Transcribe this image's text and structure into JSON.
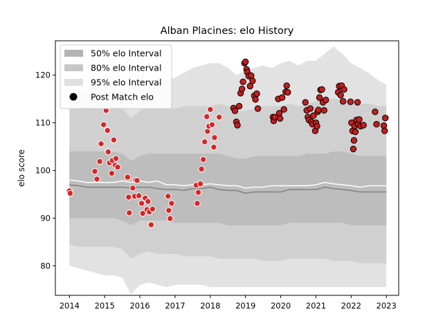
{
  "chart_data": {
    "type": "scatter",
    "title": "Alban Placines: elo History",
    "xlabel": "",
    "ylabel": "elo score",
    "xlim": [
      2013.6,
      2023.35
    ],
    "ylim": [
      73.8,
      127.2
    ],
    "x_ticks": [
      {
        "value": 2014,
        "label": "2014"
      },
      {
        "value": 2015,
        "label": "2015"
      },
      {
        "value": 2016,
        "label": "2016"
      },
      {
        "value": 2017,
        "label": "2017"
      },
      {
        "value": 2018,
        "label": "2018"
      },
      {
        "value": 2019,
        "label": "2019"
      },
      {
        "value": 2020,
        "label": "2020"
      },
      {
        "value": 2021,
        "label": "2021"
      },
      {
        "value": 2022,
        "label": "2022"
      },
      {
        "value": 2023,
        "label": "2023"
      }
    ],
    "y_ticks": [
      {
        "value": 80,
        "label": "80"
      },
      {
        "value": 90,
        "label": "90"
      },
      {
        "value": 100,
        "label": "100"
      },
      {
        "value": 110,
        "label": "110"
      },
      {
        "value": 120,
        "label": "120"
      }
    ],
    "grid": false,
    "legend_position": "top-left",
    "legend": [
      {
        "label": "50% elo Interval",
        "kind": "band",
        "color": "#b3b3b3"
      },
      {
        "label": "80% elo Interval",
        "kind": "band",
        "color": "#c6c6c6"
      },
      {
        "label": "95% elo Interval",
        "kind": "band",
        "color": "#e0e0e0"
      },
      {
        "label": "Post Match elo",
        "kind": "marker",
        "color": "#000000"
      }
    ],
    "colors": {
      "band_95": "#e2e2e2",
      "band_80": "#d0d0d0",
      "band_50": "#bdbdbd",
      "median_line": "#808080",
      "mean_line": "#ffffff",
      "points_early_fill": "#d62728",
      "points_early_edge": "#ffffff",
      "points_late_fill": "#c41e1e",
      "points_late_edge": "#000000"
    },
    "bands": {
      "x": [
        2014.0,
        2014.25,
        2014.5,
        2014.75,
        2015.0,
        2015.25,
        2015.5,
        2015.75,
        2016.0,
        2016.25,
        2016.5,
        2016.75,
        2017.0,
        2017.25,
        2017.5,
        2017.75,
        2018.0,
        2018.25,
        2018.5,
        2018.75,
        2019.0,
        2019.25,
        2019.5,
        2019.75,
        2020.0,
        2020.25,
        2020.5,
        2020.75,
        2021.0,
        2021.25,
        2021.5,
        2021.75,
        2022.0,
        2022.25,
        2022.5,
        2022.75,
        2023.0
      ],
      "p95_upper": [
        116.0,
        116.5,
        117.0,
        117.5,
        118.0,
        118.0,
        117.5,
        114.5,
        116.5,
        117.5,
        118.5,
        119.0,
        119.5,
        120.5,
        121.5,
        122.0,
        122.5,
        122.5,
        121.5,
        120.0,
        121.0,
        121.5,
        122.0,
        121.5,
        122.5,
        123.0,
        122.0,
        123.0,
        123.0,
        124.5,
        126.0,
        124.5,
        122.5,
        121.5,
        120.5,
        119.0,
        118.0
      ],
      "p80_upper": [
        113.0,
        113.0,
        113.5,
        113.5,
        113.5,
        113.5,
        113.0,
        111.0,
        112.5,
        113.0,
        113.0,
        113.0,
        113.0,
        113.5,
        113.5,
        113.5,
        113.5,
        114.0,
        113.5,
        112.5,
        112.5,
        113.0,
        113.5,
        113.5,
        113.5,
        114.0,
        113.5,
        114.0,
        114.5,
        115.0,
        115.0,
        115.0,
        114.5,
        114.0,
        114.0,
        113.5,
        113.5
      ],
      "p50_upper": [
        104.0,
        104.0,
        104.0,
        104.0,
        104.0,
        104.0,
        103.5,
        102.0,
        103.0,
        103.5,
        103.5,
        103.5,
        103.5,
        103.5,
        103.5,
        103.5,
        103.5,
        103.5,
        103.0,
        102.5,
        102.5,
        103.0,
        103.0,
        103.0,
        103.0,
        103.0,
        103.0,
        103.5,
        103.5,
        103.5,
        104.0,
        104.0,
        103.5,
        103.0,
        103.0,
        103.0,
        103.0
      ],
      "median": [
        97.0,
        96.8,
        96.5,
        96.5,
        96.5,
        96.5,
        96.5,
        96.3,
        96.5,
        96.5,
        96.2,
        96.0,
        96.0,
        95.8,
        96.2,
        96.2,
        96.5,
        96.0,
        95.8,
        95.8,
        95.2,
        95.5,
        95.5,
        95.5,
        95.5,
        96.0,
        96.0,
        96.0,
        96.0,
        96.5,
        96.2,
        96.0,
        95.8,
        95.5,
        95.5,
        95.5,
        95.5
      ],
      "mean": [
        98.0,
        97.8,
        97.5,
        97.5,
        97.5,
        97.5,
        97.8,
        97.5,
        97.8,
        97.5,
        97.8,
        97.0,
        97.0,
        96.8,
        97.0,
        97.0,
        97.2,
        97.0,
        96.8,
        96.8,
        96.3,
        96.5,
        96.5,
        96.8,
        96.8,
        96.8,
        96.8,
        96.8,
        97.0,
        97.5,
        97.2,
        97.0,
        96.8,
        96.5,
        96.8,
        96.8,
        96.8
      ],
      "p50_lower": [
        90.0,
        90.0,
        90.0,
        90.0,
        90.0,
        90.0,
        89.5,
        88.5,
        89.5,
        89.5,
        89.5,
        89.5,
        89.0,
        89.0,
        89.0,
        89.0,
        89.0,
        89.0,
        88.5,
        88.5,
        88.5,
        88.5,
        88.5,
        88.5,
        88.5,
        89.0,
        89.0,
        89.0,
        89.0,
        89.0,
        89.0,
        89.0,
        88.5,
        88.5,
        88.5,
        88.5,
        88.5
      ],
      "p80_lower": [
        84.5,
        84.0,
        84.0,
        84.0,
        84.0,
        84.0,
        83.5,
        81.5,
        82.5,
        83.0,
        82.5,
        82.5,
        82.5,
        82.0,
        82.0,
        82.0,
        82.0,
        81.5,
        81.5,
        81.5,
        81.5,
        81.5,
        81.0,
        81.0,
        81.0,
        81.5,
        81.5,
        81.5,
        81.5,
        81.5,
        81.0,
        81.0,
        81.0,
        80.5,
        80.5,
        80.5,
        80.5
      ],
      "p95_lower": [
        80.0,
        79.5,
        79.0,
        78.5,
        78.0,
        78.0,
        77.5,
        74.0,
        76.0,
        76.5,
        76.0,
        75.5,
        76.0,
        76.0,
        76.0,
        76.0,
        75.5,
        75.5,
        75.5,
        75.5,
        75.5,
        75.5,
        75.5,
        75.5,
        75.5,
        75.5,
        75.5,
        75.5,
        75.5,
        75.5,
        75.5,
        75.5,
        75.5,
        75.5,
        75.5,
        75.5,
        75.5
      ]
    },
    "series": [
      {
        "name": "Post Match elo",
        "points": [
          [
            2014.0,
            95.7
          ],
          [
            2014.02,
            95.2
          ],
          [
            2014.72,
            99.8
          ],
          [
            2014.78,
            98.2
          ],
          [
            2014.86,
            101.9
          ],
          [
            2014.9,
            105.6
          ],
          [
            2014.97,
            109.6
          ],
          [
            2015.04,
            112.6
          ],
          [
            2015.08,
            108.4
          ],
          [
            2015.1,
            103.9
          ],
          [
            2015.14,
            101.6
          ],
          [
            2015.2,
            99.4
          ],
          [
            2015.22,
            102.1
          ],
          [
            2015.26,
            106.4
          ],
          [
            2015.3,
            101.1
          ],
          [
            2015.32,
            102.5
          ],
          [
            2015.37,
            100.7
          ],
          [
            2015.65,
            98.6
          ],
          [
            2015.68,
            94.4
          ],
          [
            2015.7,
            91.1
          ],
          [
            2015.8,
            96.3
          ],
          [
            2015.85,
            94.6
          ],
          [
            2015.88,
            98.0
          ],
          [
            2015.92,
            97.9
          ],
          [
            2015.97,
            94.7
          ],
          [
            2016.05,
            93.1
          ],
          [
            2016.08,
            91.0
          ],
          [
            2016.15,
            94.2
          ],
          [
            2016.2,
            91.8
          ],
          [
            2016.23,
            93.5
          ],
          [
            2016.27,
            91.3
          ],
          [
            2016.32,
            88.6
          ],
          [
            2016.36,
            91.9
          ],
          [
            2016.8,
            94.6
          ],
          [
            2016.82,
            91.6
          ],
          [
            2016.86,
            89.9
          ],
          [
            2016.9,
            93.1
          ],
          [
            2017.6,
            96.9
          ],
          [
            2017.63,
            93.1
          ],
          [
            2017.66,
            95.4
          ],
          [
            2017.72,
            97.2
          ],
          [
            2017.75,
            100.3
          ],
          [
            2017.8,
            102.3
          ],
          [
            2017.84,
            106.0
          ],
          [
            2017.9,
            111.3
          ],
          [
            2017.92,
            108.2
          ],
          [
            2017.96,
            109.3
          ],
          [
            2018.0,
            112.8
          ],
          [
            2018.05,
            109.6
          ],
          [
            2018.1,
            104.9
          ],
          [
            2018.12,
            106.9
          ],
          [
            2018.25,
            111.2
          ],
          [
            2018.66,
            113.1
          ],
          [
            2018.7,
            112.5
          ],
          [
            2018.74,
            110.2
          ],
          [
            2018.77,
            109.5
          ],
          [
            2018.82,
            113.5
          ],
          [
            2018.86,
            116.2
          ],
          [
            2018.9,
            117.1
          ],
          [
            2018.93,
            118.6
          ],
          [
            2018.97,
            122.5
          ],
          [
            2019.0,
            122.8
          ],
          [
            2019.03,
            121.2
          ],
          [
            2019.05,
            120.6
          ],
          [
            2019.09,
            119.8
          ],
          [
            2019.13,
            117.7
          ],
          [
            2019.16,
            119.9
          ],
          [
            2019.2,
            118.8
          ],
          [
            2019.25,
            115.7
          ],
          [
            2019.28,
            114.9
          ],
          [
            2019.32,
            116.1
          ],
          [
            2019.35,
            113.0
          ],
          [
            2019.78,
            111.2
          ],
          [
            2019.8,
            110.4
          ],
          [
            2019.83,
            111.2
          ],
          [
            2019.93,
            115.0
          ],
          [
            2019.96,
            112.0
          ],
          [
            2019.98,
            110.9
          ],
          [
            2020.04,
            115.3
          ],
          [
            2020.09,
            112.8
          ],
          [
            2020.14,
            116.5
          ],
          [
            2020.17,
            117.8
          ],
          [
            2020.2,
            116.4
          ],
          [
            2020.7,
            114.3
          ],
          [
            2020.74,
            112.6
          ],
          [
            2020.77,
            111.2
          ],
          [
            2020.8,
            110.6
          ],
          [
            2020.84,
            113.0
          ],
          [
            2020.87,
            110.2
          ],
          [
            2020.9,
            109.7
          ],
          [
            2020.93,
            111.5
          ],
          [
            2020.98,
            108.3
          ],
          [
            2021.0,
            110.0
          ],
          [
            2021.03,
            109.3
          ],
          [
            2021.05,
            112.3
          ],
          [
            2021.07,
            112.7
          ],
          [
            2021.1,
            115.3
          ],
          [
            2021.13,
            116.9
          ],
          [
            2021.17,
            117.0
          ],
          [
            2021.2,
            114.3
          ],
          [
            2021.23,
            112.6
          ],
          [
            2021.28,
            114.8
          ],
          [
            2021.63,
            116.4
          ],
          [
            2021.66,
            117.7
          ],
          [
            2021.7,
            115.8
          ],
          [
            2021.73,
            117.8
          ],
          [
            2021.77,
            114.5
          ],
          [
            2021.8,
            117.0
          ],
          [
            2021.98,
            114.4
          ],
          [
            2022.01,
            110.0
          ],
          [
            2022.04,
            108.3
          ],
          [
            2022.06,
            104.5
          ],
          [
            2022.08,
            106.3
          ],
          [
            2022.1,
            109.3
          ],
          [
            2022.12,
            108.1
          ],
          [
            2022.15,
            110.6
          ],
          [
            2022.18,
            114.3
          ],
          [
            2022.2,
            109.7
          ],
          [
            2022.23,
            110.7
          ],
          [
            2022.27,
            109.3
          ],
          [
            2022.35,
            109.5
          ],
          [
            2022.68,
            112.3
          ],
          [
            2022.72,
            109.7
          ],
          [
            2022.93,
            109.4
          ],
          [
            2022.95,
            108.3
          ],
          [
            2022.97,
            111.0
          ]
        ],
        "split_x": 2018.6
      }
    ]
  }
}
